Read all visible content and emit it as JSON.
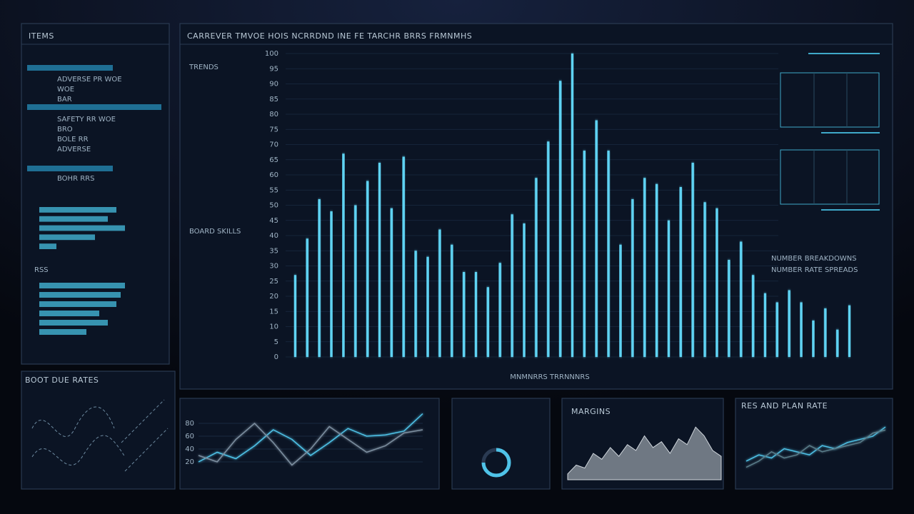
{
  "sidebar": {
    "title": "ITEMS",
    "rows": [
      "ADVERSE PR WOE",
      "WOE",
      "BAR",
      "SAFETY RR WOE",
      "BRO",
      "BOLE RR",
      "ADVERSE",
      "BOHR RRS"
    ],
    "subtitle": "RSS"
  },
  "main_labels": {
    "left_top": "TRENDS",
    "left_mid": "BOARD SKILLS",
    "right_1": "NUMBER BREAKDOWNS",
    "right_2": "NUMBER RATE SPREADS"
  },
  "wave_panel": {
    "title": "BOOT DUE RATES"
  },
  "chart_data": [
    {
      "type": "bar",
      "title": "CARREVER TMVOE HOIS NCRRDND INE FE TARCHR BRRS FRMNMHS",
      "x_label": "MNMNRRS  TRRNNNRS",
      "color": "#5fd3f3",
      "values": [
        27,
        39,
        52,
        48,
        67,
        50,
        58,
        64,
        49,
        66,
        35,
        33,
        42,
        37,
        28,
        28,
        23,
        31,
        47,
        44,
        59,
        71,
        91,
        100,
        68,
        78,
        68,
        37,
        52,
        59,
        57,
        45,
        56,
        64,
        51,
        49,
        32,
        38,
        27,
        21,
        18,
        22,
        18,
        12,
        16,
        9,
        17
      ],
      "ylim": [
        0,
        100
      ],
      "yticks": [
        0,
        5,
        10,
        15,
        20,
        25,
        30,
        35,
        40,
        45,
        50,
        55,
        60,
        65,
        70,
        75,
        80,
        85,
        90,
        95,
        100
      ]
    },
    {
      "type": "line",
      "ylim": [
        0,
        100
      ],
      "yticks": [
        20,
        40,
        60,
        80
      ],
      "series": [
        {
          "color": "#4fc3e8",
          "values": [
            20,
            35,
            25,
            45,
            70,
            55,
            30,
            50,
            72,
            60,
            62,
            68,
            95
          ]
        },
        {
          "color": "#7d8fa0",
          "values": [
            30,
            20,
            55,
            80,
            50,
            15,
            40,
            75,
            55,
            35,
            45,
            65,
            70
          ]
        }
      ]
    },
    {
      "type": "area",
      "title": "MARGINS",
      "color": "#9aa3ad",
      "ylim": [
        0,
        100
      ],
      "values": [
        10,
        25,
        20,
        45,
        35,
        55,
        40,
        60,
        50,
        75,
        55,
        65,
        45,
        70,
        60,
        90,
        75,
        50,
        40
      ]
    },
    {
      "type": "line",
      "title": "RES AND PLAN RATE",
      "ylim": [
        0,
        100
      ],
      "series": [
        {
          "color": "#4fc3e8",
          "values": [
            30,
            40,
            35,
            50,
            45,
            40,
            55,
            50,
            60,
            65,
            70,
            85
          ]
        },
        {
          "color": "#5a7d8a",
          "values": [
            20,
            30,
            45,
            35,
            40,
            55,
            45,
            50,
            55,
            60,
            75,
            80
          ]
        }
      ]
    },
    {
      "type": "hbar",
      "color": "#3fa9c9",
      "values": [
        90,
        80,
        100,
        65,
        20
      ]
    },
    {
      "type": "hbar",
      "color": "#3fa9c9",
      "values": [
        100,
        95,
        90,
        70,
        80,
        55
      ]
    },
    {
      "type": "gauge",
      "color": "#4fc3e8",
      "value": 75,
      "ylim": [
        0,
        100
      ]
    }
  ]
}
